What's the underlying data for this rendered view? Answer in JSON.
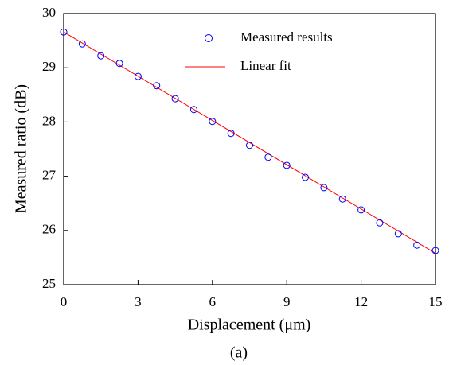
{
  "chart_data": {
    "type": "scatter",
    "xlabel": "Displacement (μm)",
    "ylabel": "Measured ratio (dB)",
    "caption": "(a)",
    "xlim": [
      0,
      15
    ],
    "xticks": [
      0,
      3,
      6,
      9,
      12,
      15
    ],
    "ylim": [
      25,
      30
    ],
    "yticks": [
      25,
      26,
      27,
      28,
      29,
      30
    ],
    "legend": "upper center",
    "series": [
      {
        "name": "Measured results",
        "type": "scatter",
        "color": "#0000ff",
        "x": [
          0,
          0.75,
          1.5,
          2.25,
          3,
          3.75,
          4.5,
          5.25,
          6,
          6.75,
          7.5,
          8.25,
          9,
          9.75,
          10.5,
          11.25,
          12,
          12.75,
          13.5,
          14.25,
          15
        ],
        "values": [
          29.66,
          29.44,
          29.22,
          29.08,
          28.84,
          28.67,
          28.43,
          28.23,
          28.01,
          27.79,
          27.57,
          27.35,
          27.2,
          26.98,
          26.79,
          26.58,
          26.38,
          26.14,
          25.94,
          25.73,
          25.63
        ]
      },
      {
        "name": "Linear fit",
        "type": "line",
        "color": "#ff0000",
        "x": [
          0,
          15
        ],
        "values": [
          29.66,
          25.58
        ]
      }
    ]
  }
}
